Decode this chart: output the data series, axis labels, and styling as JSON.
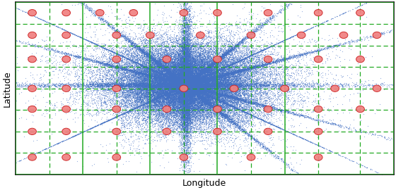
{
  "title": "",
  "xlabel": "Longitude",
  "ylabel": "Latitude",
  "xlim": [
    0,
    1
  ],
  "ylim": [
    0,
    1
  ],
  "background_color": "#ffffff",
  "plot_bg_color": "#ffffff",
  "user_dot_color": "#4472c4",
  "cell_center_color_face": "#f08080",
  "cell_center_color_edge": "#cc2222",
  "grid_solid_color": "#22aa22",
  "grid_dashed_color": "#22aa22",
  "seed": 42,
  "figsize": [
    5.6,
    2.7
  ],
  "dpi": 100,
  "solid_vlines": [
    0.0,
    0.178,
    0.356,
    0.534,
    0.712,
    1.0
  ],
  "solid_hlines": [
    0.0,
    1.0
  ],
  "dashed_vlines": [
    0.089,
    0.267,
    0.445,
    0.623,
    0.801,
    0.912
  ],
  "dashed_hlines": [
    0.125,
    0.25,
    0.375,
    0.5,
    0.625,
    0.75,
    0.875
  ],
  "cell_centers": [
    [
      0.044,
      0.94
    ],
    [
      0.134,
      0.94
    ],
    [
      0.223,
      0.94
    ],
    [
      0.312,
      0.94
    ],
    [
      0.445,
      0.94
    ],
    [
      0.534,
      0.94
    ],
    [
      0.668,
      0.94
    ],
    [
      0.801,
      0.94
    ],
    [
      0.912,
      0.94
    ],
    [
      0.044,
      0.81
    ],
    [
      0.134,
      0.81
    ],
    [
      0.267,
      0.81
    ],
    [
      0.356,
      0.81
    ],
    [
      0.489,
      0.81
    ],
    [
      0.623,
      0.81
    ],
    [
      0.756,
      0.81
    ],
    [
      0.868,
      0.81
    ],
    [
      0.956,
      0.81
    ],
    [
      0.044,
      0.67
    ],
    [
      0.134,
      0.67
    ],
    [
      0.267,
      0.67
    ],
    [
      0.4,
      0.67
    ],
    [
      0.534,
      0.67
    ],
    [
      0.668,
      0.67
    ],
    [
      0.801,
      0.67
    ],
    [
      0.912,
      0.67
    ],
    [
      0.044,
      0.5
    ],
    [
      0.134,
      0.5
    ],
    [
      0.267,
      0.5
    ],
    [
      0.445,
      0.5
    ],
    [
      0.578,
      0.5
    ],
    [
      0.712,
      0.5
    ],
    [
      0.845,
      0.5
    ],
    [
      0.956,
      0.5
    ],
    [
      0.044,
      0.38
    ],
    [
      0.134,
      0.38
    ],
    [
      0.267,
      0.38
    ],
    [
      0.4,
      0.38
    ],
    [
      0.534,
      0.38
    ],
    [
      0.668,
      0.38
    ],
    [
      0.801,
      0.38
    ],
    [
      0.912,
      0.38
    ],
    [
      0.044,
      0.25
    ],
    [
      0.134,
      0.25
    ],
    [
      0.267,
      0.25
    ],
    [
      0.4,
      0.25
    ],
    [
      0.534,
      0.25
    ],
    [
      0.668,
      0.25
    ],
    [
      0.801,
      0.25
    ],
    [
      0.044,
      0.1
    ],
    [
      0.134,
      0.1
    ],
    [
      0.267,
      0.1
    ],
    [
      0.445,
      0.1
    ],
    [
      0.623,
      0.1
    ],
    [
      0.801,
      0.1
    ]
  ]
}
